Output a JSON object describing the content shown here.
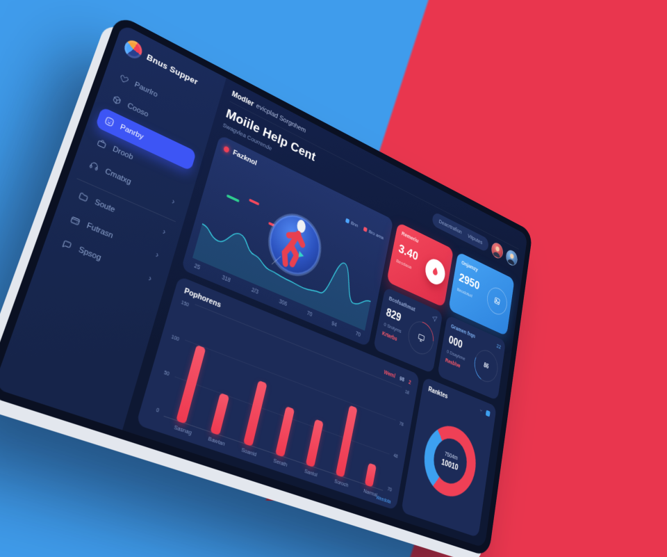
{
  "background": {
    "blue": "#3f9cec",
    "red": "#e9364e"
  },
  "app": {
    "logo_text": "Bnus Supper"
  },
  "topbar": {
    "bold": "Modler",
    "rest": "evicplad Sorgnhem"
  },
  "header": {
    "title": "Moiile Help Cent",
    "subtitle": "Swagvlea Courrende",
    "search_left": "Deacrtrafion",
    "search_right": "Vitputes"
  },
  "sidebar": {
    "items": [
      {
        "label": "Paurlro",
        "icon": "heart-icon",
        "active": false,
        "chevron": false
      },
      {
        "label": "Cooso",
        "icon": "box-icon",
        "active": false,
        "chevron": false
      },
      {
        "label": "Panrby",
        "icon": "smile-icon",
        "active": true,
        "chevron": false
      },
      {
        "label": "Droob",
        "icon": "briefcase-icon",
        "active": false,
        "chevron": false
      },
      {
        "label": "Cmatxg",
        "icon": "headset-icon",
        "active": false,
        "chevron": true
      },
      {
        "label": "Soute",
        "icon": "folder-icon",
        "active": false,
        "chevron": true
      },
      {
        "label": "Futrasn",
        "icon": "wallet-icon",
        "active": false,
        "chevron": true
      },
      {
        "label": "Spsog",
        "icon": "chat-icon",
        "active": false,
        "chevron": true
      }
    ]
  },
  "cards": {
    "red": {
      "title": "Remeriu",
      "value": "3.40",
      "subtitle": "Beodaua"
    },
    "blue": {
      "title": "Onjamzy",
      "value": "2950",
      "subtitle": "Beodotud"
    },
    "stat1": {
      "title": "Bcofsathmat",
      "value": "829",
      "subtitle": "0 Srolyms",
      "badge": "Krterbs"
    },
    "stat2": {
      "title": "Gramen frqn",
      "corner": "22",
      "value": "000",
      "subtitle": "0 Dsayhme",
      "badge": "Resblve",
      "circle_text": "86"
    }
  },
  "chart_data": [
    {
      "type": "area",
      "title": "Fazknol",
      "legend": [
        {
          "label": "Bnn",
          "color": "#4da6ff"
        },
        {
          "label": "Bro ama",
          "color": "#f25268"
        }
      ],
      "x_labels": [
        "25",
        "318",
        "2/3",
        "306",
        "70",
        "94",
        "70"
      ],
      "series": [
        {
          "name": "wave",
          "color": "#38d4e6",
          "values": [
            50,
            35,
            60,
            38,
            25,
            22,
            20,
            24,
            88,
            30,
            45
          ]
        }
      ],
      "ylim": [
        0,
        100
      ],
      "grid": false
    },
    {
      "type": "bar",
      "title": "Pophorens",
      "legend_parts": [
        {
          "text": "Weml",
          "color": "#f25268"
        },
        {
          "text": "98",
          "color": "#9fb0d8"
        },
        {
          "text": "2",
          "color": "#f25268"
        }
      ],
      "categories": [
        "Sasnag",
        "Bawtan",
        "Soanid",
        "Serath",
        "Santol",
        "Soroch",
        "Narmal"
      ],
      "values": [
        100,
        52,
        85,
        65,
        62,
        97,
        30
      ],
      "ylim": [
        0,
        150
      ],
      "yticks_left": [
        "150",
        "100",
        "50",
        "0"
      ],
      "yticks_right": [
        "18",
        "78",
        "48",
        "70"
      ],
      "bar_color": "#f2455a",
      "footnote": "Weedota",
      "grid": true,
      "legend_position": "top-right"
    },
    {
      "type": "pie",
      "title": "Ranktes",
      "center_top": "7504m",
      "center_bottom": "10010",
      "slices": [
        {
          "name": "secondary",
          "value": 30,
          "color": "#3da0f0"
        },
        {
          "name": "primary",
          "value": 70,
          "color": "#ef4056"
        }
      ],
      "start_angle": 210
    }
  ]
}
